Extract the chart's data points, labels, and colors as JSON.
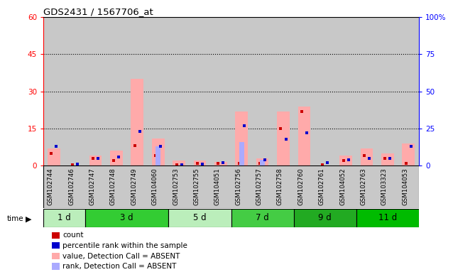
{
  "title": "GDS2431 / 1567706_at",
  "samples": [
    "GSM102744",
    "GSM102746",
    "GSM102747",
    "GSM102748",
    "GSM102749",
    "GSM104060",
    "GSM102753",
    "GSM102755",
    "GSM104051",
    "GSM102756",
    "GSM102757",
    "GSM102758",
    "GSM102760",
    "GSM102761",
    "GSM104052",
    "GSM102763",
    "GSM103323",
    "GSM104053"
  ],
  "group_boundaries": [
    {
      "start": 0,
      "end": 1,
      "label": "1 d",
      "color": "#bbeebb"
    },
    {
      "start": 2,
      "end": 5,
      "label": "3 d",
      "color": "#33cc33"
    },
    {
      "start": 6,
      "end": 8,
      "label": "5 d",
      "color": "#bbeebb"
    },
    {
      "start": 9,
      "end": 11,
      "label": "7 d",
      "color": "#44cc44"
    },
    {
      "start": 12,
      "end": 14,
      "label": "9 d",
      "color": "#22aa22"
    },
    {
      "start": 15,
      "end": 17,
      "label": "11 d",
      "color": "#00bb00"
    }
  ],
  "count_values": [
    5,
    0.3,
    3,
    2,
    8,
    4,
    0.3,
    1,
    1,
    1,
    1,
    15,
    22,
    0.3,
    2,
    4,
    3,
    1
  ],
  "percentile_values": [
    13,
    1,
    5,
    6,
    23,
    13,
    0.5,
    1,
    2,
    27,
    4,
    18,
    22,
    2,
    4,
    5,
    5,
    13
  ],
  "absent_value_values": [
    7,
    0,
    4,
    6,
    35,
    11,
    2,
    2,
    1.5,
    22,
    3,
    22,
    24,
    0,
    4,
    7,
    5,
    9
  ],
  "absent_rank_values": [
    0,
    0,
    0,
    0,
    0,
    13,
    0,
    0,
    0,
    16,
    4,
    0,
    0,
    0,
    0,
    0,
    0,
    0
  ],
  "ylim_left": [
    0,
    60
  ],
  "ylim_right": [
    0,
    100
  ],
  "yticks_left": [
    0,
    15,
    30,
    45,
    60
  ],
  "yticks_right": [
    0,
    25,
    50,
    75,
    100
  ],
  "plot_bg_color": "#ffffff",
  "col_bg_color": "#c8c8c8",
  "count_color": "#cc0000",
  "percentile_color": "#0000cc",
  "absent_value_color": "#ffaaaa",
  "absent_rank_color": "#aaaaff",
  "legend_labels": [
    "count",
    "percentile rank within the sample",
    "value, Detection Call = ABSENT",
    "rank, Detection Call = ABSENT"
  ],
  "legend_colors": [
    "#cc0000",
    "#0000cc",
    "#ffaaaa",
    "#aaaaff"
  ]
}
